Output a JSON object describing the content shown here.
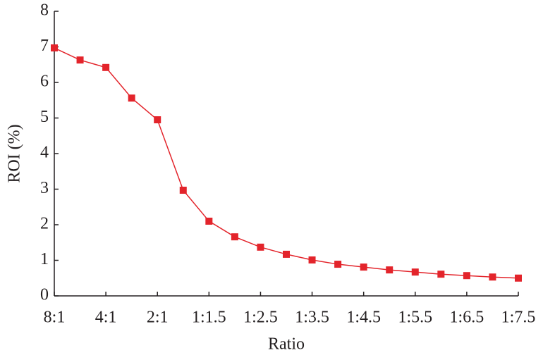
{
  "chart_data": {
    "type": "line",
    "x_label": "Ratio",
    "y_label": "ROI (%)",
    "categories": [
      "8:1",
      null,
      "4:1",
      null,
      "2:1",
      null,
      "1:1.5",
      null,
      "1:2.5",
      null,
      "1:3.5",
      null,
      "1:4.5",
      null,
      "1:5.5",
      null,
      "1:6.5",
      null,
      "1:7.5"
    ],
    "series": [
      {
        "name": null,
        "color": "#e3242b",
        "values": [
          6.97,
          6.63,
          6.42,
          5.56,
          4.95,
          2.97,
          2.1,
          1.66,
          1.37,
          1.17,
          1.01,
          0.89,
          0.81,
          0.73,
          0.67,
          0.61,
          0.57,
          0.53,
          0.5
        ]
      }
    ],
    "ylim": [
      0,
      8
    ],
    "yticks": [
      0,
      1,
      2,
      3,
      4,
      5,
      6,
      7,
      8
    ],
    "grid": false
  }
}
